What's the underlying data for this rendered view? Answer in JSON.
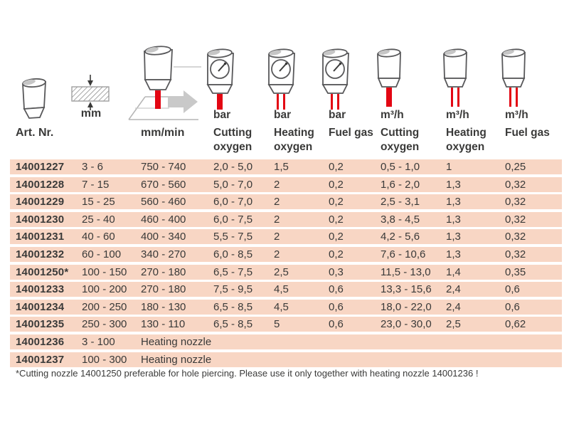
{
  "table": {
    "header": {
      "art": {
        "label": "Art. Nr.",
        "icon": "nozzle-icon"
      },
      "thickness": {
        "label": "mm",
        "icon": "material-thickness-icon"
      },
      "speed": {
        "label": "mm/min",
        "icon": "cutting-torch-icon"
      },
      "columns": [
        {
          "unit": "bar",
          "name": "Cutting oxygen",
          "icon": "gauge-nozzle-single-jet-icon"
        },
        {
          "unit": "bar",
          "name": "Heating oxygen",
          "icon": "gauge-nozzle-double-jet-icon"
        },
        {
          "unit": "bar",
          "name": "Fuel gas",
          "icon": "gauge-nozzle-double-jet-icon"
        },
        {
          "unit": "m³/h",
          "name": "Cutting oxygen",
          "icon": "nozzle-single-jet-icon"
        },
        {
          "unit": "m³/h",
          "name": "Heating oxygen",
          "icon": "nozzle-double-jet-icon"
        },
        {
          "unit": "m³/h",
          "name": "Fuel gas",
          "icon": "nozzle-double-jet-icon"
        }
      ]
    },
    "rows": [
      {
        "art": "14001227",
        "mm": "3 - 6",
        "speed": "750 - 740",
        "cutting_oxygen_bar": "2,0 - 5,0",
        "heating_oxygen_bar": "1,5",
        "fuel_gas_bar": "0,2",
        "cutting_oxygen_m3h": "0,5 - 1,0",
        "heating_oxygen_m3h": "1",
        "fuel_gas_m3h": "0,25"
      },
      {
        "art": "14001228",
        "mm": "7 - 15",
        "speed": "670 - 560",
        "cutting_oxygen_bar": "5,0 - 7,0",
        "heating_oxygen_bar": "2",
        "fuel_gas_bar": "0,2",
        "cutting_oxygen_m3h": "1,6 - 2,0",
        "heating_oxygen_m3h": "1,3",
        "fuel_gas_m3h": "0,32"
      },
      {
        "art": "14001229",
        "mm": "15 - 25",
        "speed": "560 - 460",
        "cutting_oxygen_bar": "6,0 - 7,0",
        "heating_oxygen_bar": "2",
        "fuel_gas_bar": "0,2",
        "cutting_oxygen_m3h": "2,5 - 3,1",
        "heating_oxygen_m3h": "1,3",
        "fuel_gas_m3h": "0,32"
      },
      {
        "art": "14001230",
        "mm": "25 - 40",
        "speed": "460 - 400",
        "cutting_oxygen_bar": "6,0 - 7,5",
        "heating_oxygen_bar": "2",
        "fuel_gas_bar": "0,2",
        "cutting_oxygen_m3h": "3,8 - 4,5",
        "heating_oxygen_m3h": "1,3",
        "fuel_gas_m3h": "0,32"
      },
      {
        "art": "14001231",
        "mm": "40 - 60",
        "speed": "400 - 340",
        "cutting_oxygen_bar": "5,5 - 7,5",
        "heating_oxygen_bar": "2",
        "fuel_gas_bar": "0,2",
        "cutting_oxygen_m3h": "4,2 - 5,6",
        "heating_oxygen_m3h": "1,3",
        "fuel_gas_m3h": "0,32"
      },
      {
        "art": "14001232",
        "mm": "60 - 100",
        "speed": "340 - 270",
        "cutting_oxygen_bar": "6,0 - 8,5",
        "heating_oxygen_bar": "2",
        "fuel_gas_bar": "0,2",
        "cutting_oxygen_m3h": "7,6 - 10,6",
        "heating_oxygen_m3h": "1,3",
        "fuel_gas_m3h": "0,32"
      },
      {
        "art": "14001250*",
        "mm": "100 - 150",
        "speed": "270 - 180",
        "cutting_oxygen_bar": "6,5 - 7,5",
        "heating_oxygen_bar": "2,5",
        "fuel_gas_bar": "0,3",
        "cutting_oxygen_m3h": "11,5 - 13,0",
        "heating_oxygen_m3h": "1,4",
        "fuel_gas_m3h": "0,35"
      },
      {
        "art": "14001233",
        "mm": "100 - 200",
        "speed": "270 - 180",
        "cutting_oxygen_bar": "7,5 - 9,5",
        "heating_oxygen_bar": "4,5",
        "fuel_gas_bar": "0,6",
        "cutting_oxygen_m3h": "13,3 - 15,6",
        "heating_oxygen_m3h": "2,4",
        "fuel_gas_m3h": "0,6"
      },
      {
        "art": "14001234",
        "mm": "200 - 250",
        "speed": "180 - 130",
        "cutting_oxygen_bar": "6,5 - 8,5",
        "heating_oxygen_bar": "4,5",
        "fuel_gas_bar": "0,6",
        "cutting_oxygen_m3h": "18,0 - 22,0",
        "heating_oxygen_m3h": "2,4",
        "fuel_gas_m3h": "0,6"
      },
      {
        "art": "14001235",
        "mm": "250 - 300",
        "speed": "130 - 110",
        "cutting_oxygen_bar": "6,5 - 8,5",
        "heating_oxygen_bar": "5",
        "fuel_gas_bar": "0,6",
        "cutting_oxygen_m3h": "23,0 - 30,0",
        "heating_oxygen_m3h": "2,5",
        "fuel_gas_m3h": "0,62"
      },
      {
        "art": "14001236",
        "mm": "3 - 100",
        "note": "Heating nozzle"
      },
      {
        "art": "14001237",
        "mm": "100 - 300",
        "note": "Heating nozzle"
      }
    ],
    "footnote": "*Cutting nozzle 14001250 preferable for hole piercing. Please use it only together with heating nozzle 14001236 !"
  },
  "colors": {
    "row_background": "#f8d6c4",
    "jet_red": "#e30613",
    "text": "#3a3a39",
    "icon_outline": "#58585a",
    "icon_gray": "#c6c6c6"
  }
}
